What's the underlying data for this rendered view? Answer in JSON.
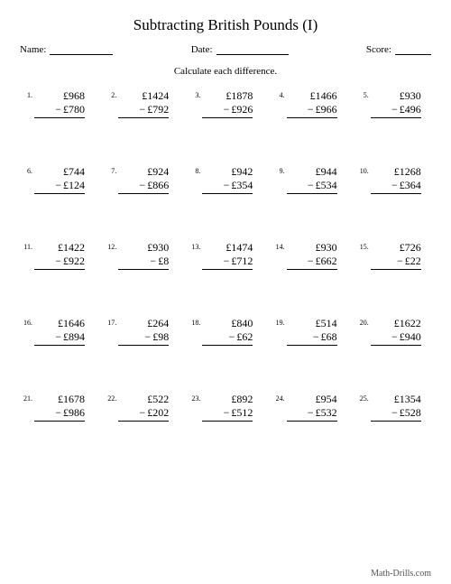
{
  "title": "Subtracting British Pounds (I)",
  "labels": {
    "name": "Name:",
    "date": "Date:",
    "score": "Score:"
  },
  "instruction": "Calculate each difference.",
  "currency": "£",
  "operator": "−",
  "footer": "Math-Drills.com",
  "problems": [
    {
      "n": "1.",
      "a": 968,
      "b": 780
    },
    {
      "n": "2.",
      "a": 1424,
      "b": 792
    },
    {
      "n": "3.",
      "a": 1878,
      "b": 926
    },
    {
      "n": "4.",
      "a": 1466,
      "b": 966
    },
    {
      "n": "5.",
      "a": 930,
      "b": 496
    },
    {
      "n": "6.",
      "a": 744,
      "b": 124
    },
    {
      "n": "7.",
      "a": 924,
      "b": 866
    },
    {
      "n": "8.",
      "a": 942,
      "b": 354
    },
    {
      "n": "9.",
      "a": 944,
      "b": 534
    },
    {
      "n": "10.",
      "a": 1268,
      "b": 364
    },
    {
      "n": "11.",
      "a": 1422,
      "b": 922
    },
    {
      "n": "12.",
      "a": 930,
      "b": 8
    },
    {
      "n": "13.",
      "a": 1474,
      "b": 712
    },
    {
      "n": "14.",
      "a": 930,
      "b": 662
    },
    {
      "n": "15.",
      "a": 726,
      "b": 22
    },
    {
      "n": "16.",
      "a": 1646,
      "b": 894
    },
    {
      "n": "17.",
      "a": 264,
      "b": 98
    },
    {
      "n": "18.",
      "a": 840,
      "b": 62
    },
    {
      "n": "19.",
      "a": 514,
      "b": 68
    },
    {
      "n": "20.",
      "a": 1622,
      "b": 940
    },
    {
      "n": "21.",
      "a": 1678,
      "b": 986
    },
    {
      "n": "22.",
      "a": 522,
      "b": 202
    },
    {
      "n": "23.",
      "a": 892,
      "b": 512
    },
    {
      "n": "24.",
      "a": 954,
      "b": 532
    },
    {
      "n": "25.",
      "a": 1354,
      "b": 528
    }
  ]
}
